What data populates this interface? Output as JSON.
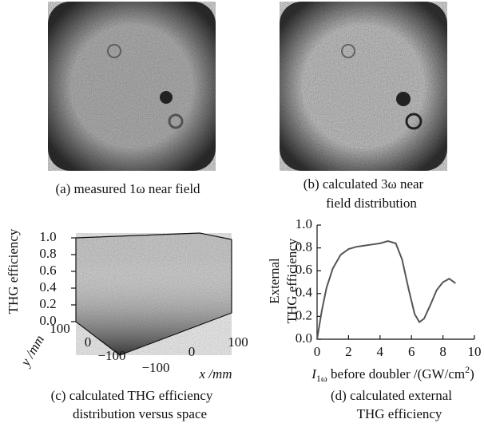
{
  "panels": {
    "a": {
      "caption": "(a) measured 1ω near field"
    },
    "b": {
      "caption": [
        "(b) calculated 3ω near",
        "field distribution"
      ]
    },
    "c": {
      "caption": [
        "(c) calculated THG efficiency",
        "distribution versus space"
      ],
      "zlabel": "THG efficiency",
      "ylabel": "y /mm",
      "xlabel": "x /mm",
      "zticks": [
        "0.0",
        "0.2",
        "0.4",
        "0.6",
        "0.8",
        "1.0"
      ],
      "yticks": [
        "100",
        "0",
        "−100"
      ],
      "xticks": [
        "−100",
        "0",
        "100"
      ]
    },
    "d": {
      "caption": [
        "(d) calculated external",
        "THG efficiency"
      ]
    }
  },
  "chart_data": {
    "type": "line",
    "ylabel": [
      "External",
      "THG efficiency"
    ],
    "xlabel": {
      "symbol": "I",
      "subscript": "1ω",
      "text": " before doubler /(GW/cm",
      "superscript": "2",
      "end": ")"
    },
    "x": [
      0,
      0.3,
      0.6,
      1,
      1.5,
      2,
      2.5,
      3,
      3.5,
      4,
      4.5,
      5,
      5.4,
      5.8,
      6.2,
      6.5,
      6.8,
      7.2,
      7.6,
      8,
      8.4,
      8.8
    ],
    "series": [
      {
        "color": "#555555",
        "values": [
          0,
          0.25,
          0.45,
          0.62,
          0.74,
          0.79,
          0.81,
          0.82,
          0.83,
          0.84,
          0.86,
          0.84,
          0.7,
          0.45,
          0.22,
          0.15,
          0.18,
          0.3,
          0.43,
          0.5,
          0.53,
          0.49
        ]
      }
    ],
    "xlim": [
      0,
      10
    ],
    "xticks": [
      0,
      2,
      4,
      6,
      8,
      10
    ],
    "ylim": [
      0,
      1
    ],
    "yticks": [
      {
        "value": 0,
        "label": "0.0"
      },
      0.2,
      0.4,
      0.6,
      0.8,
      {
        "value": 1,
        "label": "1.0"
      }
    ]
  }
}
